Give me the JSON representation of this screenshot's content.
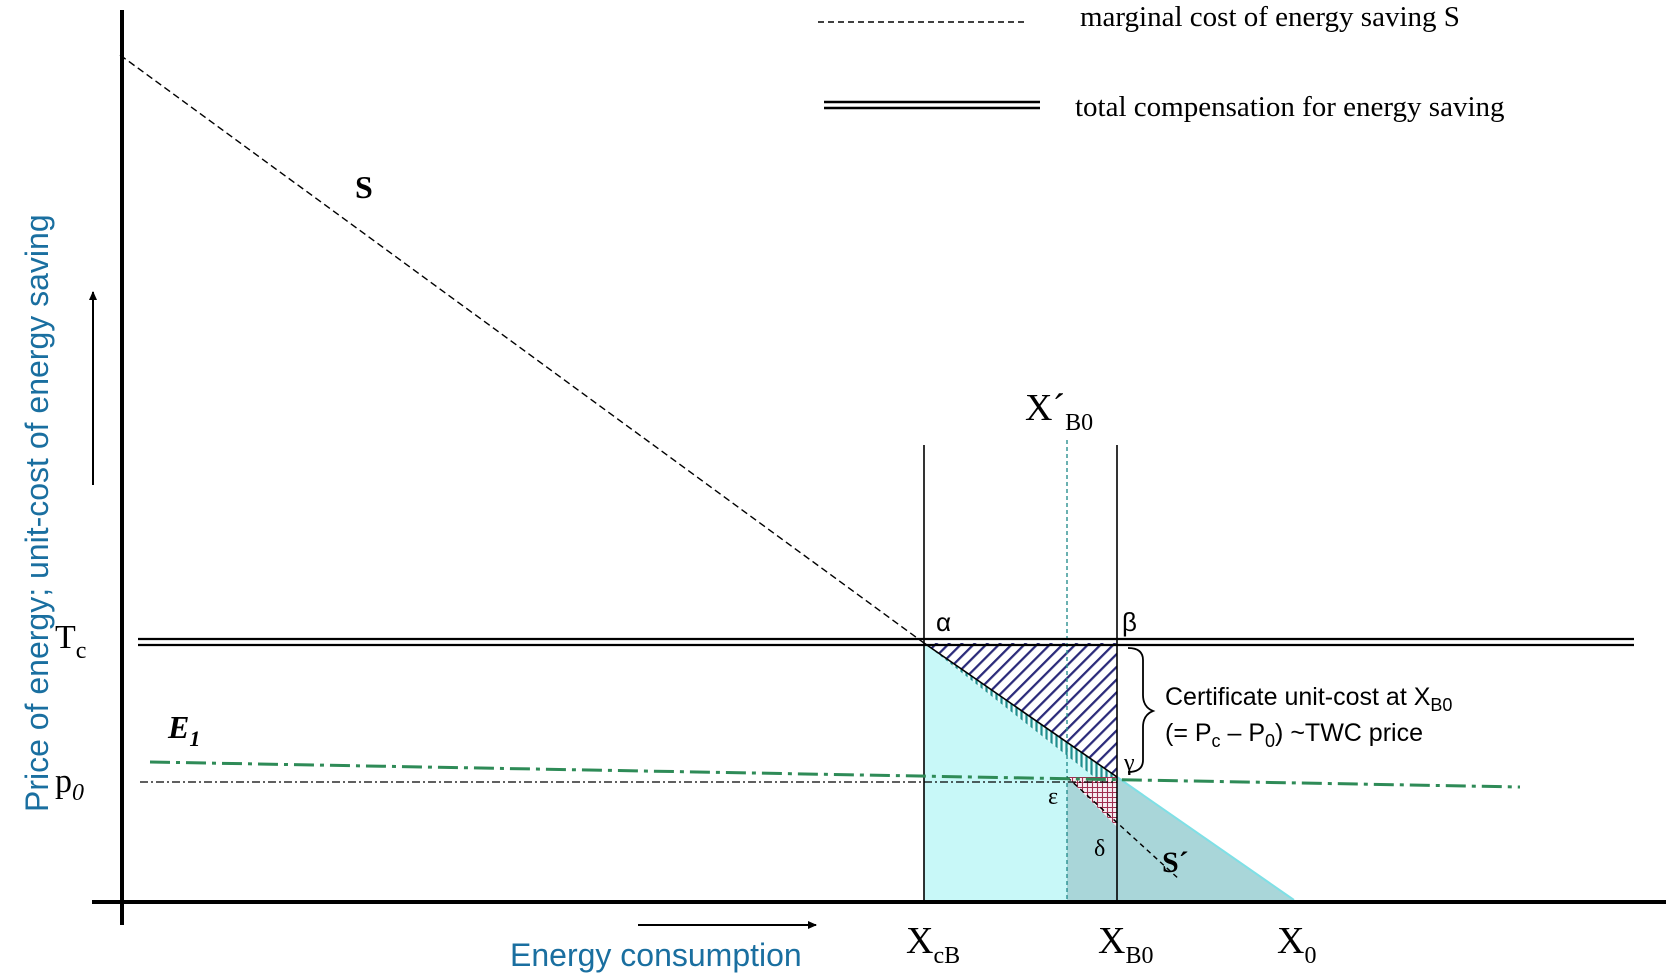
{
  "legend": {
    "dashed_label": "marginal cost of energy saving S",
    "double_label": "total compensation for energy saving"
  },
  "axes": {
    "y_label": "Price of energy; unit-cost of energy saving",
    "x_label": "Energy consumption"
  },
  "labels": {
    "S": "S",
    "S_prime": "S´",
    "E1": "E",
    "E1_sub": "1",
    "Tc": "T",
    "Tc_sub": "c",
    "p0": "p",
    "p0_sub": "0",
    "alpha": "α",
    "beta": "β",
    "gamma": "γ",
    "delta": "δ",
    "epsilon": "ε",
    "XprimeB0": "X´",
    "XprimeB0_sub": "B0",
    "XcB": "X",
    "XcB_sub": "cB",
    "XB0": "X",
    "XB0_sub": "B0",
    "X0": "X",
    "X0_sub": "0"
  },
  "annotation": {
    "line1_text": "Certificate unit-cost at X",
    "line1_sub": "B0",
    "line2_a": "(= P",
    "line2_sub1": "c",
    "line2_b": " – P",
    "line2_sub2": "0",
    "line2_c": ") ~TWC price"
  },
  "colors": {
    "axis_label_blue": "#1a6fa0",
    "e1_green": "#2e8b57",
    "light_cyan": "#c8f8f8",
    "teal_overlap": "#a9d6d9",
    "hatch_navy": "#2a2a7a",
    "hatch_teal": "#1f8f8f",
    "cross_red": "#a03050",
    "xprime_line": "#2a9090"
  }
}
